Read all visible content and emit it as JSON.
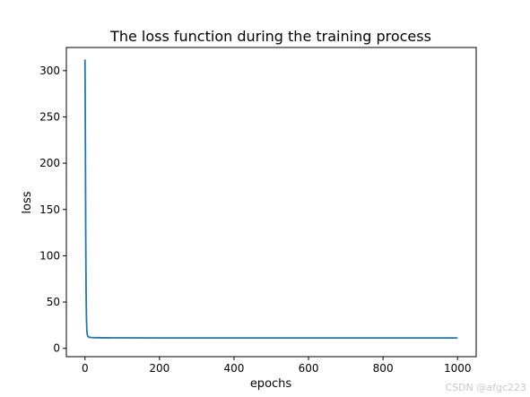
{
  "chart_data": {
    "type": "line",
    "title": "The loss function during the training process",
    "xlabel": "epochs",
    "ylabel": "loss",
    "xlim": [
      -50,
      1050
    ],
    "ylim": [
      -9,
      325
    ],
    "x_ticks": [
      0,
      200,
      400,
      600,
      800,
      1000
    ],
    "y_ticks": [
      0,
      50,
      100,
      150,
      200,
      250,
      300
    ],
    "grid": false,
    "line_color": "#1f77b4",
    "series": [
      {
        "x": [
          0,
          1,
          2,
          3,
          4,
          5,
          6,
          8,
          10,
          15,
          20,
          30,
          50,
          100,
          200,
          400,
          600,
          800,
          1000
        ],
        "values": [
          312,
          230,
          120,
          60,
          32,
          20,
          15,
          13,
          12.2,
          11.8,
          11.6,
          11.5,
          11.4,
          11.3,
          11.2,
          11.2,
          11.2,
          11.2,
          11.2
        ]
      }
    ]
  },
  "watermark": "CSDN @afgc223"
}
